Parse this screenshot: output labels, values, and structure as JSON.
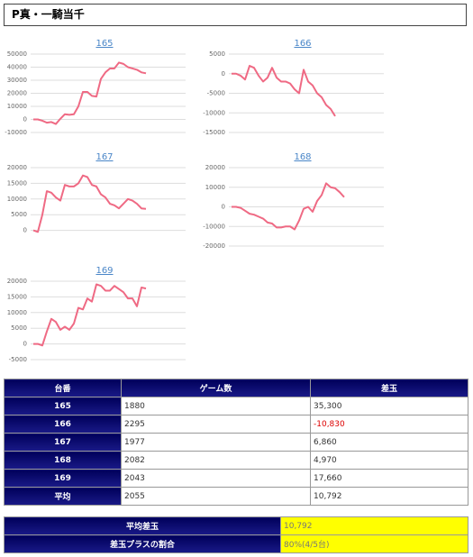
{
  "header": {
    "title": "P真・一騎当千"
  },
  "chart_data": [
    {
      "type": "line",
      "title": "165",
      "color": "#ef6a84",
      "grid": true,
      "ylim": [
        -10000,
        50000
      ],
      "yticks": [
        50000,
        40000,
        30000,
        20000,
        10000,
        0,
        -10000
      ],
      "values": [
        0,
        0,
        -1000,
        -2500,
        -2000,
        -3500,
        500,
        4000,
        3500,
        4000,
        10000,
        21000,
        21000,
        18000,
        17500,
        31000,
        36000,
        39000,
        39000,
        43500,
        42500,
        40000,
        39000,
        38000,
        36000,
        35300
      ]
    },
    {
      "type": "line",
      "title": "166",
      "color": "#ef6a84",
      "grid": true,
      "ylim": [
        -15000,
        5000
      ],
      "yticks": [
        5000,
        0,
        -5000,
        -10000,
        -15000
      ],
      "values": [
        0,
        0,
        -500,
        -1500,
        2000,
        1500,
        -500,
        -2000,
        -1000,
        1500,
        -1000,
        -2000,
        -2000,
        -2500,
        -4000,
        -5000,
        1000,
        -2000,
        -3000,
        -5000,
        -6000,
        -8000,
        -9000,
        -10830
      ]
    },
    {
      "type": "line",
      "title": "167",
      "color": "#ef6a84",
      "grid": true,
      "ylim": [
        -5000,
        20000
      ],
      "yticks": [
        20000,
        15000,
        10000,
        5000,
        0
      ],
      "values": [
        0,
        -500,
        5000,
        12500,
        12000,
        10500,
        9500,
        14500,
        14000,
        14000,
        15000,
        17500,
        17000,
        14500,
        14000,
        11500,
        10500,
        8500,
        8000,
        7000,
        8500,
        10000,
        9500,
        8500,
        7000,
        6860
      ]
    },
    {
      "type": "line",
      "title": "168",
      "color": "#ef6a84",
      "grid": true,
      "ylim": [
        -20000,
        20000
      ],
      "yticks": [
        20000,
        10000,
        0,
        -10000,
        -20000
      ],
      "values": [
        0,
        0,
        -500,
        -2000,
        -3500,
        -4000,
        -5000,
        -6000,
        -8000,
        -8500,
        -10500,
        -10500,
        -10000,
        -10000,
        -11500,
        -7000,
        -1000,
        0,
        -2500,
        3000,
        6000,
        12000,
        10000,
        9500,
        7500,
        4970
      ]
    },
    {
      "type": "line",
      "title": "169",
      "color": "#ef6a84",
      "grid": true,
      "ylim": [
        -5000,
        20000
      ],
      "yticks": [
        20000,
        15000,
        10000,
        5000,
        0,
        -5000
      ],
      "values": [
        0,
        0,
        -500,
        4000,
        8000,
        7000,
        4500,
        5500,
        4500,
        6500,
        11500,
        11000,
        14500,
        13500,
        19000,
        18500,
        17000,
        17000,
        18500,
        17500,
        16500,
        14500,
        14500,
        12000,
        18000,
        17660
      ]
    }
  ],
  "table": {
    "header": [
      "台番",
      "ゲーム数",
      "差玉"
    ],
    "rows": [
      [
        "165",
        "1880",
        "35,300"
      ],
      [
        "166",
        "2295",
        "-10,830"
      ],
      [
        "167",
        "1977",
        "6,860"
      ],
      [
        "168",
        "2082",
        "4,970"
      ],
      [
        "169",
        "2043",
        "17,660"
      ],
      [
        "平均",
        "2055",
        "10,792"
      ]
    ]
  },
  "summary": {
    "rows": [
      [
        "平均差玉",
        "10,792"
      ],
      [
        "差玉プラスの割合",
        "80%(4/5台)"
      ]
    ]
  }
}
